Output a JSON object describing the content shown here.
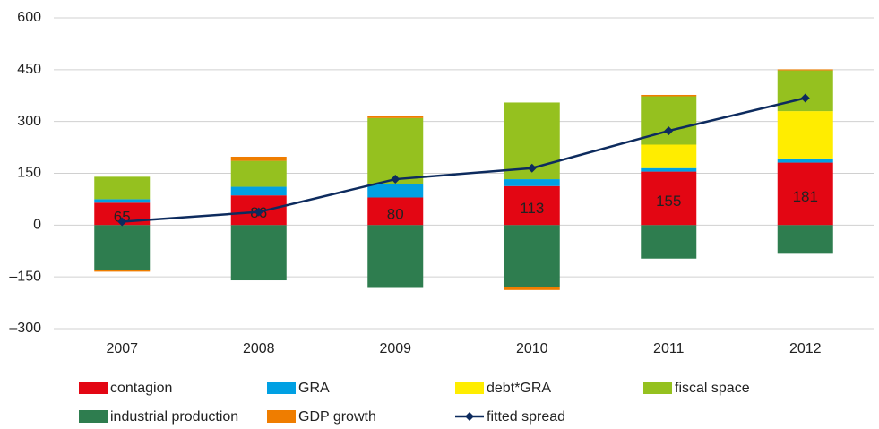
{
  "chart_data": {
    "type": "bar",
    "stacked": true,
    "categories": [
      "2007",
      "2008",
      "2009",
      "2010",
      "2011",
      "2012"
    ],
    "series": [
      {
        "name": "contagion",
        "color": "#e30613",
        "values": [
          65,
          86,
          80,
          113,
          155,
          181
        ],
        "data_labels": true
      },
      {
        "name": "GRA",
        "color": "#00a0e3",
        "values": [
          10,
          25,
          40,
          20,
          10,
          12
        ]
      },
      {
        "name": "debt*GRA",
        "color": "#ffed00",
        "values": [
          0,
          0,
          0,
          0,
          68,
          137
        ]
      },
      {
        "name": "fiscal space",
        "color": "#95c11f",
        "values": [
          65,
          75,
          190,
          222,
          140,
          118
        ]
      },
      {
        "name": "industrial production",
        "color": "#2e7d4f",
        "values": [
          -130,
          -160,
          -182,
          -180,
          -97,
          -83
        ]
      },
      {
        "name": "GDP growth",
        "color": "#ef7d00",
        "values": [
          -5,
          12,
          5,
          -8,
          4,
          3
        ]
      },
      {
        "name": "fitted spread",
        "color": "#0d2b5e",
        "type": "line",
        "values": [
          10,
          38,
          133,
          165,
          273,
          368
        ]
      }
    ],
    "ylim": [
      -300,
      600
    ],
    "yticks": [
      {
        "value": -300,
        "label": "–300"
      },
      {
        "value": -150,
        "label": "–150"
      },
      0,
      150,
      300,
      450,
      600
    ],
    "grid": true,
    "legend": "bottom"
  }
}
